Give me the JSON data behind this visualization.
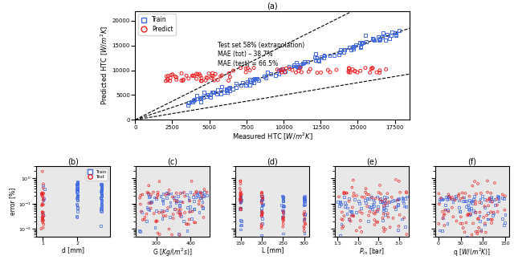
{
  "title_a": "(a)",
  "title_b": "(b)",
  "title_c": "(c)",
  "title_d": "(d)",
  "title_e": "(e)",
  "title_f": "(f)",
  "xlabel_a": "Measured HTC $[W/m^2K]$",
  "ylabel_a": "Predicted HTC $[W/m^2K]$",
  "ylabel_bottom": "error [%]",
  "xlabel_b": "d [mm]",
  "xlabel_c": "G $[Kg/(m^2s)]$",
  "xlabel_d": "L [mm]",
  "xlabel_e": "$P_{in}$ [bar]",
  "xlabel_f": "q $[W/(m^2K)]$",
  "annotation": "Test set 58% (extrapolation)\nMAE (tot) – 38.7%\nMAE (test) = 66.5%",
  "train_color": "#4169E1",
  "test_color": "#EE2020",
  "xlim_a": [
    0,
    18500
  ],
  "ylim_a": [
    0,
    22000
  ],
  "xticks_a": [
    0,
    2500,
    5000,
    7500,
    10000,
    12500,
    15000,
    17500
  ],
  "yticks_a": [
    0,
    5000,
    10000,
    15000,
    20000
  ],
  "bottom_bg": "#e8e8e8",
  "top_bg": "#ffffff"
}
